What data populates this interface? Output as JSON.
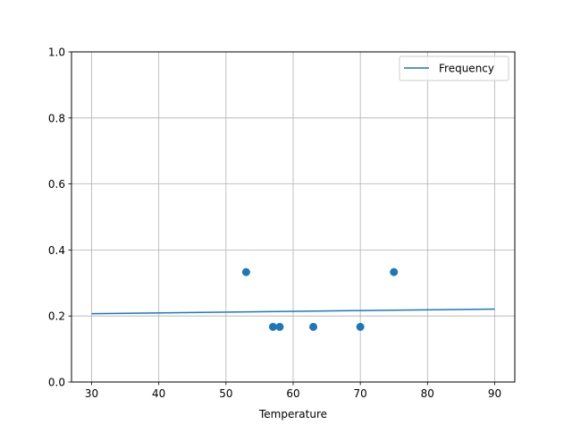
{
  "chart_data": {
    "type": "scatter",
    "title": "",
    "xlabel": "Temperature",
    "ylabel": "",
    "xlim": [
      27,
      93
    ],
    "ylim": [
      0,
      1.0
    ],
    "xticks": [
      30,
      40,
      50,
      60,
      70,
      80,
      90
    ],
    "yticks": [
      0.0,
      0.2,
      0.4,
      0.6,
      0.8,
      1.0
    ],
    "xtick_labels": [
      "30",
      "40",
      "50",
      "60",
      "70",
      "80",
      "90"
    ],
    "ytick_labels": [
      "0.0",
      "0.2",
      "0.4",
      "0.6",
      "0.8",
      "1.0"
    ],
    "grid": true,
    "legend": {
      "placement": "top-right",
      "entries": [
        "Frequency"
      ]
    },
    "series": [
      {
        "name": "Frequency",
        "kind": "line",
        "color": "#1f77b4",
        "x": [
          30,
          90
        ],
        "y": [
          0.207,
          0.221
        ]
      },
      {
        "kind": "scatter",
        "color": "#1f77b4",
        "x": [
          53,
          57,
          58,
          63,
          70,
          75
        ],
        "y": [
          0.333,
          0.167,
          0.167,
          0.167,
          0.167,
          0.333
        ]
      }
    ]
  }
}
